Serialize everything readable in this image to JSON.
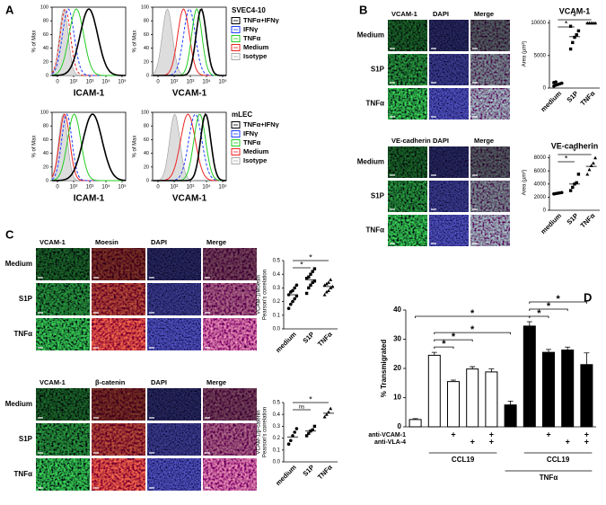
{
  "panels": {
    "A": {
      "label": "A",
      "y_label": "% of Max",
      "yticks": [
        0,
        20,
        40,
        60,
        80,
        100
      ],
      "xtick_labels": [
        "0",
        "10²",
        "10³",
        "10⁴",
        "10⁵"
      ],
      "plots": [
        {
          "x_label": "ICAM-1"
        },
        {
          "x_label": "VCAM-1"
        },
        {
          "x_label": "ICAM-1"
        },
        {
          "x_label": "VCAM-1"
        }
      ],
      "legends": [
        {
          "title": "SVEC4-10",
          "entries": [
            {
              "name": "TNFα+IFNγ",
              "color": "#000000"
            },
            {
              "name": "IFNγ",
              "color": "#1f3fff"
            },
            {
              "name": "TNFα",
              "color": "#22cc22"
            },
            {
              "name": "Medium",
              "color": "#ee2222"
            },
            {
              "name": "Isotype",
              "color": "#aaaaaa"
            }
          ]
        },
        {
          "title": "mLEC",
          "entries": [
            {
              "name": "TNFα+IFNγ",
              "color": "#000000"
            },
            {
              "name": "IFNγ",
              "color": "#1f3fff"
            },
            {
              "name": "TNFα",
              "color": "#22cc22"
            },
            {
              "name": "Medium",
              "color": "#ee2222"
            },
            {
              "name": "Isotype",
              "color": "#aaaaaa"
            }
          ]
        }
      ]
    },
    "B": {
      "label": "B",
      "sets": [
        {
          "columns": [
            "VCAM-1",
            "DAPI",
            "Merge"
          ],
          "rows": [
            "Medium",
            "S1P",
            "TNFα"
          ],
          "plot": {
            "title": "VCAM-1",
            "y_label": "Area (µm²)",
            "categories": [
              "medium",
              "S1P",
              "TNFα"
            ],
            "ylim": [
              0,
              10500
            ],
            "yticks": [
              0,
              5000,
              10000
            ],
            "points": [
              [
                300,
                450,
                550,
                650,
                750,
                850,
                950
              ],
              [
                6000,
                7000,
                7800,
                8200,
                8800,
                9500
              ],
              [
                10000,
                10000,
                10000,
                10000,
                10000
              ]
            ],
            "means": [
              650,
              7900,
              10000
            ],
            "sig": [
              {
                "from": 0,
                "to": 1,
                "label": "*"
              },
              {
                "from": 0,
                "to": 2,
                "label": "*"
              }
            ]
          }
        },
        {
          "columns": [
            "VE-cadherin",
            "DAPI",
            "Merge"
          ],
          "rows": [
            "Medium",
            "S1P",
            "TNFα"
          ],
          "plot": {
            "title": "VE-cadherin",
            "y_label": "Area (µm²)",
            "categories": [
              "medium",
              "S1P",
              "TNFα"
            ],
            "ylim": [
              0,
              8500
            ],
            "yticks": [
              0,
              2000,
              4000,
              6000,
              8000
            ],
            "points": [
              [
                2500,
                2550,
                2600,
                2650,
                2700
              ],
              [
                3000,
                3500,
                4000,
                4200,
                5500
              ],
              [
                5500,
                6200,
                6800,
                7200,
                8000
              ]
            ],
            "means": [
              2600,
              4000,
              6700
            ],
            "sig": [
              {
                "from": 0,
                "to": 1,
                "label": "*"
              },
              {
                "from": 0,
                "to": 2,
                "label": "*"
              }
            ]
          }
        }
      ]
    },
    "C": {
      "label": "C",
      "sets": [
        {
          "columns": [
            "VCAM-1",
            "Moesin",
            "DAPI",
            "Merge"
          ],
          "rows": [
            "Medium",
            "S1P",
            "TNFα"
          ],
          "plot": {
            "y_label": [
              "VCAM-1/Moesin",
              "Pearson's correlation"
            ],
            "categories": [
              "medium",
              "S1P",
              "TNFα"
            ],
            "ylim": [
              0,
              0.5
            ],
            "yticks": [
              {
                "value": 0,
                "label": "0.0"
              },
              0.1,
              0.2,
              0.3,
              0.4,
              0.5
            ],
            "points": [
              [
                0.15,
                0.18,
                0.2,
                0.22,
                0.24,
                0.25,
                0.27,
                0.28,
                0.3,
                0.32
              ],
              [
                0.26,
                0.3,
                0.32,
                0.34,
                0.35,
                0.37,
                0.38,
                0.4,
                0.42,
                0.44
              ],
              [
                0.25,
                0.27,
                0.28,
                0.3,
                0.31,
                0.32,
                0.33,
                0.34,
                0.36
              ]
            ],
            "means": [
              0.25,
              0.36,
              0.31
            ],
            "sig": [
              {
                "from": 0,
                "to": 1,
                "label": "*"
              },
              {
                "from": 0,
                "to": 2,
                "label": "*"
              }
            ]
          }
        },
        {
          "columns": [
            "VCAM-1",
            "β-catenin",
            "DAPI",
            "Merge"
          ],
          "rows": [
            "Medium",
            "S1P",
            "TNFα"
          ],
          "plot": {
            "y_label": [
              "VCAM-1/β-catenin",
              "Pearson's correlation"
            ],
            "categories": [
              "medium",
              "S1P",
              "TNFα"
            ],
            "ylim": [
              0,
              0.5
            ],
            "yticks": [
              {
                "value": 0,
                "label": "0.0"
              },
              0.1,
              0.2,
              0.3,
              0.4,
              0.5
            ],
            "points": [
              [
                0.15,
                0.18,
                0.22,
                0.25,
                0.28
              ],
              [
                0.22,
                0.24,
                0.26,
                0.27,
                0.3
              ],
              [
                0.38,
                0.4,
                0.42,
                0.45
              ]
            ],
            "means": [
              0.21,
              0.26,
              0.41
            ],
            "sig": [
              {
                "from": 0,
                "to": 1,
                "label": "ns"
              },
              {
                "from": 0,
                "to": 2,
                "label": "*"
              }
            ]
          }
        }
      ]
    },
    "D": {
      "label": "D",
      "type": "bar",
      "y_label": "% Transmigrated",
      "ylim": [
        0,
        40
      ],
      "yticks": [
        0,
        10,
        20,
        30,
        40
      ],
      "values": [
        2.5,
        24.5,
        15.5,
        19.8,
        18.8,
        7.5,
        34.5,
        25.5,
        26.3,
        21.3
      ],
      "errors": [
        0.3,
        1.0,
        0.5,
        0.8,
        1.0,
        1.3,
        1.5,
        1.0,
        1.0,
        4.0
      ],
      "colors": [
        "#ffffff",
        "#ffffff",
        "#ffffff",
        "#ffffff",
        "#ffffff",
        "#000000",
        "#000000",
        "#000000",
        "#000000",
        "#000000"
      ],
      "treatment_rows": [
        {
          "name": "anti-VCAM-1",
          "bars": [
            2,
            4,
            7,
            9
          ]
        },
        {
          "name": "anti-VLA-4",
          "bars": [
            3,
            4,
            8,
            9
          ]
        }
      ],
      "plus_label": "+",
      "groups": [
        {
          "name": "CCL19",
          "from": 1,
          "to": 4,
          "level": 0
        },
        {
          "name": "CCL19",
          "from": 6,
          "to": 9,
          "level": 0
        },
        {
          "name": "TNFα",
          "from": 5,
          "to": 9,
          "level": 1
        }
      ],
      "sig": [
        {
          "from": 1,
          "to": 2,
          "label": "*"
        },
        {
          "from": 1,
          "to": 3,
          "label": "*"
        },
        {
          "from": 1,
          "to": 5,
          "label": "*"
        },
        {
          "from": 0,
          "to": 6,
          "label": "*"
        },
        {
          "from": 6,
          "to": 7,
          "label": "*"
        },
        {
          "from": 6,
          "to": 8,
          "label": "*"
        },
        {
          "from": 6,
          "to": 9,
          "label": "*"
        }
      ]
    }
  }
}
